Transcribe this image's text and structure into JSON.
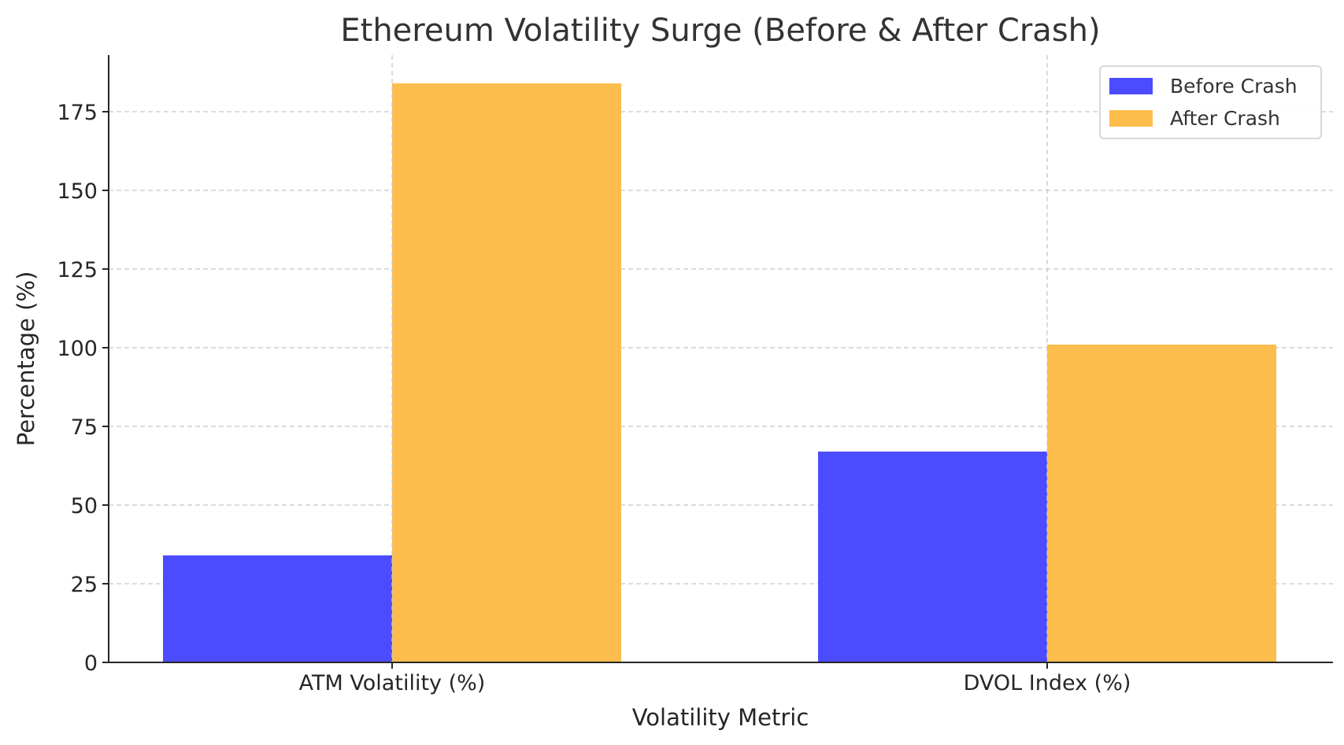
{
  "chart_data": {
    "type": "bar",
    "title": "Ethereum Volatility Surge (Before & After Crash)",
    "xlabel": "Volatility Metric",
    "ylabel": "Percentage (%)",
    "categories": [
      "ATM Volatility (%)",
      "DVOL Index (%)"
    ],
    "series": [
      {
        "name": "Before Crash",
        "values": [
          34,
          67
        ],
        "color": "#4b4bff"
      },
      {
        "name": "After Crash",
        "values": [
          184,
          101
        ],
        "color": "#fdbd4c"
      }
    ],
    "ylim": [
      0,
      193
    ],
    "yticks": [
      "0",
      "25",
      "50",
      "75",
      "100",
      "125",
      "150",
      "175"
    ],
    "grid": true,
    "legend_position": "top-right"
  }
}
